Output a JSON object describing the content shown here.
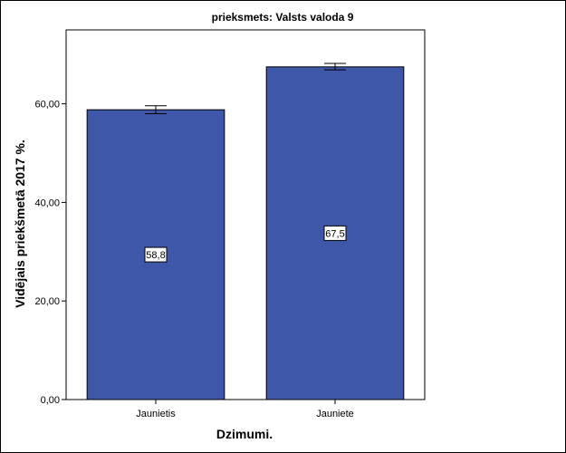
{
  "chart_data": {
    "type": "bar",
    "title": "prieksmets: Valsts valoda 9",
    "xlabel": "Dzimumi.",
    "ylabel": "Vidējais priekšmetā 2017 %.",
    "categories": [
      "Jaunietis",
      "Jauniete"
    ],
    "values": [
      58.8,
      67.5
    ],
    "value_labels": [
      "58,8",
      "67,5"
    ],
    "error_bars": [
      {
        "low": 58.0,
        "high": 59.6
      },
      {
        "low": 66.9,
        "high": 68.2
      }
    ],
    "ylim": [
      0,
      75
    ],
    "yticks": [
      0,
      20,
      40,
      60
    ],
    "ytick_labels": [
      "0,00",
      "20,00",
      "40,00",
      "60,00"
    ],
    "grid": false,
    "legend": "none",
    "colors": {
      "bar": "#3f57a9",
      "bar_outline": "#000000",
      "plot_border": "#000000",
      "background": "#ffffff"
    }
  }
}
